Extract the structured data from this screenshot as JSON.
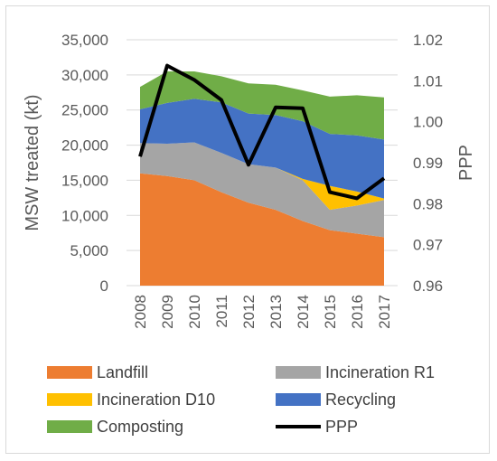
{
  "chart_data": {
    "type": "area",
    "stacked": true,
    "categories": [
      "2008",
      "2009",
      "2010",
      "2011",
      "2012",
      "2013",
      "2014",
      "2015",
      "2016",
      "2017"
    ],
    "series": [
      {
        "name": "Landfill",
        "color": "#ed7d31",
        "values": [
          16000,
          15600,
          15000,
          13300,
          11800,
          10800,
          9200,
          7900,
          7400,
          6900
        ]
      },
      {
        "name": "Incineration R1",
        "color": "#a5a5a5",
        "values": [
          4300,
          4600,
          5400,
          5600,
          5500,
          6000,
          5800,
          2900,
          4000,
          5300
        ]
      },
      {
        "name": "Incineration D10",
        "color": "#ffc000",
        "values": [
          0,
          0,
          0,
          0,
          0,
          0,
          200,
          3400,
          2000,
          200
        ]
      },
      {
        "name": "Recycling",
        "color": "#4472c4",
        "values": [
          4800,
          5800,
          6200,
          7200,
          7200,
          7500,
          8200,
          7400,
          8000,
          8400
        ]
      },
      {
        "name": "Composting",
        "color": "#70ad47",
        "values": [
          3200,
          4500,
          3900,
          3700,
          4300,
          4300,
          4400,
          5300,
          5700,
          6000
        ]
      }
    ],
    "line_series": {
      "name": "PPP",
      "color": "#000000",
      "axis": "right",
      "values": [
        0.9915,
        1.0137,
        1.0102,
        1.0053,
        0.9895,
        1.0035,
        1.0033,
        0.9828,
        0.9813,
        0.9862
      ]
    },
    "ylabel": "MSW treated (kt)",
    "y2label": "PPP",
    "ylim": [
      0,
      35000
    ],
    "yticks": [
      "0",
      "5,000",
      "10,000",
      "15,000",
      "20,000",
      "25,000",
      "30,000",
      "35,000"
    ],
    "y2lim": [
      0.96,
      1.02
    ],
    "y2ticks": [
      "0.96",
      "0.97",
      "0.98",
      "0.99",
      "1.00",
      "1.01",
      "1.02"
    ],
    "grid": true,
    "legend_position": "bottom"
  }
}
